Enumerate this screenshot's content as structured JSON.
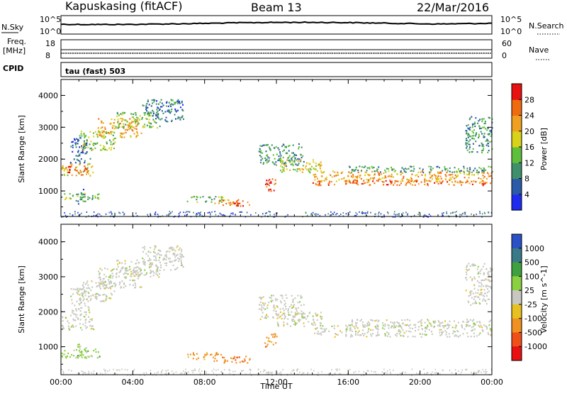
{
  "header": {
    "station": "Kapuskasing (fitACF)",
    "beam": "Beam 13",
    "date": "22/Mar/2016"
  },
  "top_panels": {
    "nsky_label": "N.Sky",
    "nsky_ticks": [
      "10^5",
      "10^0"
    ],
    "nsearch_label": "N.Search",
    "nsearch_ticks": [
      "10^5",
      "10^0"
    ],
    "freq_label_1": "Freq.",
    "freq_label_2": "[MHz]",
    "freq_ticks": [
      "18",
      "8"
    ],
    "nave_label": "Nave",
    "nave_ticks": [
      "60",
      "0"
    ],
    "cpid_label": "CPID",
    "cpid_value": "tau (fast) 503"
  },
  "chart_data": [
    {
      "type": "heatmap",
      "name": "power",
      "ylabel": "Slant Range [km]",
      "ylim": [
        200,
        4500
      ],
      "yticks": [
        "1000",
        "2000",
        "3000",
        "4000"
      ],
      "xlim": [
        "00:00",
        "24:00"
      ],
      "colorbar_label": "Power [dB]",
      "colorbar_ticks": [
        "4",
        "8",
        "12",
        "16",
        "20",
        "24",
        "28"
      ],
      "colorbar_range": [
        0,
        32
      ],
      "colors": [
        "#1f2cf0",
        "#2a5aa8",
        "#3f8f6c",
        "#5fbf3a",
        "#d8d21a",
        "#f0a020",
        "#f06a10",
        "#e81010"
      ],
      "regions": [
        {
          "t": [
            0.9,
            1.3
          ],
          "r": [
            600,
            1100
          ],
          "v": 8
        },
        {
          "t": [
            0.0,
            2.2
          ],
          "r": [
            700,
            950
          ],
          "v": 14
        },
        {
          "t": [
            0.0,
            1.8
          ],
          "r": [
            1500,
            1900
          ],
          "v": 20
        },
        {
          "t": [
            0.2,
            1.5
          ],
          "r": [
            1600,
            1800
          ],
          "v": 28
        },
        {
          "t": [
            0.5,
            1.6
          ],
          "r": [
            1900,
            2700
          ],
          "v": 6
        },
        {
          "t": [
            1.0,
            3.0
          ],
          "r": [
            2300,
            2900
          ],
          "v": 16
        },
        {
          "t": [
            2.0,
            4.5
          ],
          "r": [
            2700,
            3300
          ],
          "v": 22
        },
        {
          "t": [
            3.0,
            5.5
          ],
          "r": [
            3000,
            3500
          ],
          "v": 14
        },
        {
          "t": [
            4.5,
            6.8
          ],
          "r": [
            3200,
            3900
          ],
          "v": 8
        },
        {
          "t": [
            7.0,
            9.0
          ],
          "r": [
            650,
            850
          ],
          "v": 14
        },
        {
          "t": [
            8.5,
            10.5
          ],
          "r": [
            550,
            750
          ],
          "v": 24
        },
        {
          "t": [
            9.5,
            10.2
          ],
          "r": [
            550,
            700
          ],
          "v": 30
        },
        {
          "t": [
            11.3,
            12.0
          ],
          "r": [
            1000,
            1400
          ],
          "v": 28
        },
        {
          "t": [
            11.0,
            13.5
          ],
          "r": [
            1800,
            2500
          ],
          "v": 10
        },
        {
          "t": [
            12.0,
            14.5
          ],
          "r": [
            1600,
            2000
          ],
          "v": 18
        },
        {
          "t": [
            14.0,
            24.0
          ],
          "r": [
            1300,
            1650
          ],
          "v": 22
        },
        {
          "t": [
            14.0,
            24.0
          ],
          "r": [
            1200,
            1350
          ],
          "v": 26
        },
        {
          "t": [
            16.0,
            24.0
          ],
          "r": [
            1600,
            1800
          ],
          "v": 10
        },
        {
          "t": [
            22.5,
            24.0
          ],
          "r": [
            2200,
            3400
          ],
          "v": 10
        }
      ]
    },
    {
      "type": "heatmap",
      "name": "velocity",
      "ylabel": "Slant Range [km]",
      "ylim": [
        200,
        4500
      ],
      "yticks": [
        "1000",
        "2000",
        "3000",
        "4000"
      ],
      "xlim": [
        "00:00",
        "24:00"
      ],
      "xticks": [
        "00:00",
        "04:00",
        "08:00",
        "12:00",
        "16:00",
        "20:00",
        "00:00"
      ],
      "xlabel": "Time UT",
      "colorbar_label": "Velocity [m s^-1]",
      "colorbar_ticks": [
        "1000",
        "500",
        "100",
        "25",
        "-25",
        "-100",
        "-500",
        "-1000"
      ],
      "colors": [
        "#2a50c8",
        "#3a7a88",
        "#3fa040",
        "#8ad040",
        "#c8c8c0",
        "#e8c020",
        "#f09020",
        "#f05018",
        "#e81010"
      ],
      "regions": [
        {
          "t": [
            0.0,
            1.8
          ],
          "r": [
            1500,
            1900
          ],
          "c": 4
        },
        {
          "t": [
            0.9,
            1.4
          ],
          "r": [
            600,
            1100
          ],
          "c": 3
        },
        {
          "t": [
            0.0,
            2.2
          ],
          "r": [
            700,
            950
          ],
          "c": 3
        },
        {
          "t": [
            0.5,
            1.6
          ],
          "r": [
            1900,
            2700
          ],
          "c": 4
        },
        {
          "t": [
            1.0,
            3.0
          ],
          "r": [
            2300,
            2900
          ],
          "c": 4
        },
        {
          "t": [
            2.0,
            4.5
          ],
          "r": [
            2700,
            3300
          ],
          "c": 4
        },
        {
          "t": [
            3.0,
            5.5
          ],
          "r": [
            3000,
            3500
          ],
          "c": 4
        },
        {
          "t": [
            4.5,
            6.8
          ],
          "r": [
            3200,
            3900
          ],
          "c": 4
        },
        {
          "t": [
            7.0,
            9.0
          ],
          "r": [
            650,
            850
          ],
          "c": 6
        },
        {
          "t": [
            8.5,
            10.5
          ],
          "r": [
            550,
            750
          ],
          "c": 6
        },
        {
          "t": [
            11.3,
            12.0
          ],
          "r": [
            1000,
            1400
          ],
          "c": 6
        },
        {
          "t": [
            11.0,
            13.5
          ],
          "r": [
            1800,
            2500
          ],
          "c": 4
        },
        {
          "t": [
            12.0,
            14.5
          ],
          "r": [
            1600,
            2000
          ],
          "c": 4
        },
        {
          "t": [
            14.0,
            24.0
          ],
          "r": [
            1300,
            1650
          ],
          "c": 4
        },
        {
          "t": [
            16.0,
            24.0
          ],
          "r": [
            1600,
            1800
          ],
          "c": 4
        },
        {
          "t": [
            22.5,
            24.0
          ],
          "r": [
            2200,
            3400
          ],
          "c": 4
        }
      ]
    }
  ]
}
